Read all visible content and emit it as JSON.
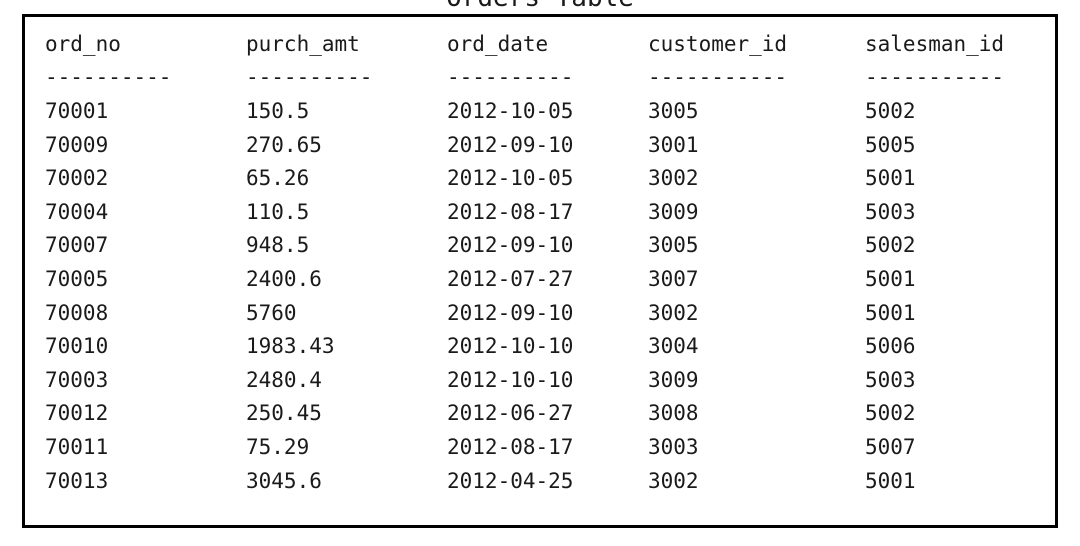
{
  "title": "Orders Table",
  "columns": [
    "ord_no",
    "purch_amt",
    "ord_date",
    "customer_id",
    "salesman_id"
  ],
  "separators": [
    "----------",
    "----------",
    "----------",
    "-----------",
    "-----------"
  ],
  "rows": [
    [
      "70001",
      "150.5",
      "2012-10-05",
      "3005",
      "5002"
    ],
    [
      "70009",
      "270.65",
      "2012-09-10",
      "3001",
      "5005"
    ],
    [
      "70002",
      "65.26",
      "2012-10-05",
      "3002",
      "5001"
    ],
    [
      "70004",
      "110.5",
      "2012-08-17",
      "3009",
      "5003"
    ],
    [
      "70007",
      "948.5",
      "2012-09-10",
      "3005",
      "5002"
    ],
    [
      "70005",
      "2400.6",
      "2012-07-27",
      "3007",
      "5001"
    ],
    [
      "70008",
      "5760",
      "2012-09-10",
      "3002",
      "5001"
    ],
    [
      "70010",
      "1983.43",
      "2012-10-10",
      "3004",
      "5006"
    ],
    [
      "70003",
      "2480.4",
      "2012-10-10",
      "3009",
      "5003"
    ],
    [
      "70012",
      "250.45",
      "2012-06-27",
      "3008",
      "5002"
    ],
    [
      "70011",
      "75.29",
      "2012-08-17",
      "3003",
      "5007"
    ],
    [
      "70013",
      "3045.6",
      "2012-04-25",
      "3002",
      "5001"
    ]
  ]
}
